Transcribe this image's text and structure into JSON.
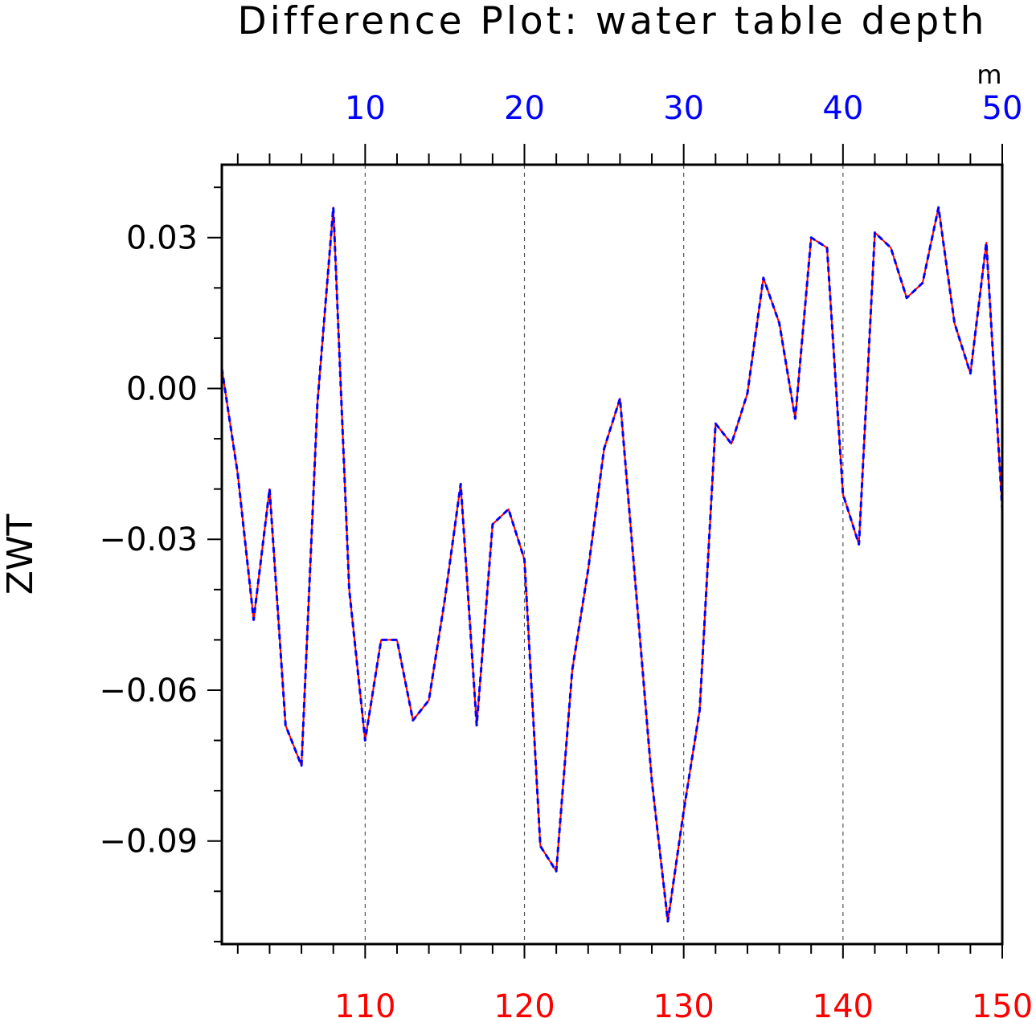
{
  "chart_data": {
    "type": "line",
    "title": "Difference Plot: water table depth",
    "ylabel": "ZWT",
    "top_axis_unit": "m",
    "ylim": [
      -0.1105,
      0.0445
    ],
    "y_ticks": [
      0.03,
      0.0,
      -0.03,
      -0.06,
      -0.09
    ],
    "y_tick_labels": [
      "0.03",
      "0.00",
      "−0.03",
      "−0.06",
      "−0.09"
    ],
    "bottom_axis": {
      "range": [
        101,
        150
      ],
      "ticks": [
        110,
        120,
        130,
        140,
        150
      ],
      "color": "#ff0000"
    },
    "top_axis": {
      "range": [
        1,
        50
      ],
      "ticks": [
        10,
        20,
        30,
        40,
        50
      ],
      "color": "#0000ff"
    },
    "grid": "vertical dashed lines at labeled x ticks",
    "x": [
      101,
      102,
      103,
      104,
      105,
      106,
      107,
      108,
      109,
      110,
      111,
      112,
      113,
      114,
      115,
      116,
      117,
      118,
      119,
      120,
      121,
      122,
      123,
      124,
      125,
      126,
      127,
      128,
      129,
      130,
      131,
      132,
      133,
      134,
      135,
      136,
      137,
      138,
      139,
      140,
      141,
      142,
      143,
      144,
      145,
      146,
      147,
      148,
      149,
      150
    ],
    "series": [
      {
        "color": "#ff0000",
        "style": "solid",
        "values": [
          0.004,
          -0.017,
          -0.046,
          -0.02,
          -0.067,
          -0.075,
          -0.003,
          0.036,
          -0.04,
          -0.07,
          -0.05,
          -0.05,
          -0.066,
          -0.062,
          -0.042,
          -0.019,
          -0.067,
          -0.027,
          -0.024,
          -0.034,
          -0.091,
          -0.096,
          -0.056,
          -0.036,
          -0.012,
          -0.002,
          -0.04,
          -0.078,
          -0.106,
          -0.084,
          -0.064,
          -0.007,
          -0.011,
          -0.001,
          0.022,
          0.013,
          -0.006,
          0.03,
          0.028,
          -0.021,
          -0.031,
          0.031,
          0.028,
          0.018,
          0.021,
          0.036,
          0.013,
          0.003,
          0.029,
          -0.024
        ]
      },
      {
        "color": "#0000ff",
        "style": "dashed",
        "values": [
          0.004,
          -0.017,
          -0.046,
          -0.02,
          -0.067,
          -0.075,
          -0.003,
          0.036,
          -0.04,
          -0.07,
          -0.05,
          -0.05,
          -0.066,
          -0.062,
          -0.042,
          -0.019,
          -0.067,
          -0.027,
          -0.024,
          -0.034,
          -0.091,
          -0.096,
          -0.056,
          -0.036,
          -0.012,
          -0.002,
          -0.04,
          -0.078,
          -0.106,
          -0.084,
          -0.064,
          -0.007,
          -0.011,
          -0.001,
          0.022,
          0.013,
          -0.006,
          0.03,
          0.028,
          -0.021,
          -0.031,
          0.031,
          0.028,
          0.018,
          0.021,
          0.036,
          0.013,
          0.003,
          0.029,
          -0.024
        ]
      }
    ]
  }
}
